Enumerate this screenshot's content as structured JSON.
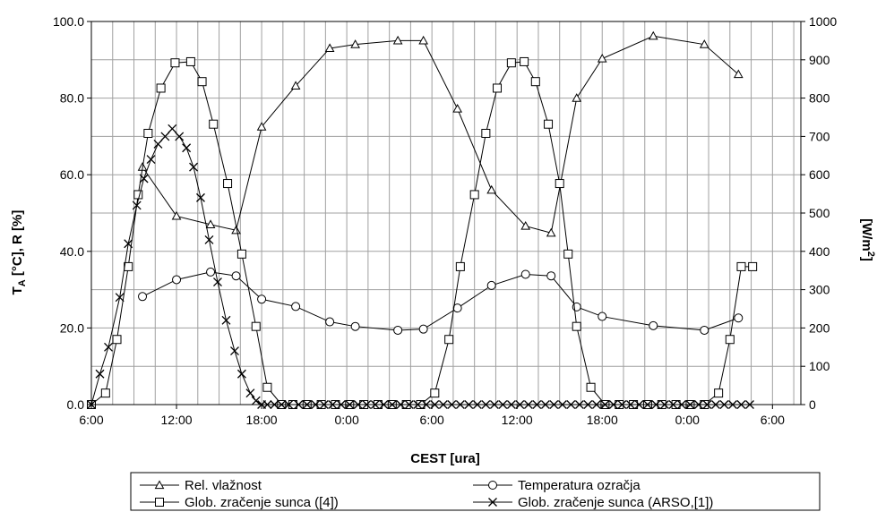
{
  "chart_data": {
    "type": "line",
    "title": "",
    "xlabel": "CEST [ura]",
    "ylabel_left_main": "T",
    "ylabel_left_sub": "A",
    "ylabel_left_rest": " [°C], R [%]",
    "ylabel_right_main": "[W/m",
    "ylabel_right_sup": "2",
    "ylabel_right_rest": "]",
    "xlim": [
      0,
      50
    ],
    "xticks": [
      0,
      6,
      12,
      18,
      24,
      30,
      36,
      42,
      48
    ],
    "xtick_labels": [
      "6:00",
      "12:00",
      "18:00",
      "0:00",
      "6:00",
      "12:00",
      "18:00",
      "0:00",
      "6:00"
    ],
    "ylim_left": [
      0,
      100
    ],
    "yticks_left": [
      0,
      20,
      40,
      60,
      80,
      100
    ],
    "ytick_labels_left": [
      "0.0",
      "20.0",
      "40.0",
      "60.0",
      "80.0",
      "100.0"
    ],
    "ylim_right": [
      0,
      1000
    ],
    "yticks_right": [
      0,
      100,
      200,
      300,
      400,
      500,
      600,
      700,
      800,
      900,
      1000
    ],
    "ytick_labels_right": [
      "0",
      "100",
      "200",
      "300",
      "400",
      "500",
      "600",
      "700",
      "800",
      "900",
      "1000"
    ],
    "grid": true,
    "legend_position": "bottom",
    "series": [
      {
        "name": "Rel. vlažnost",
        "axis": "left",
        "marker": "triangle",
        "x": [
          3.6,
          6.0,
          8.4,
          10.2,
          12.0,
          14.4,
          16.8,
          18.6,
          21.6,
          23.4,
          25.8,
          28.2,
          30.6,
          32.4,
          34.2,
          36.0
        ],
        "y": [
          62.0,
          49.2,
          47.0,
          45.5,
          72.5,
          83.2,
          93.0,
          94.0,
          95.0,
          95.0,
          77.2,
          56.0,
          46.6,
          44.8,
          80.0,
          90.3
        ],
        "x2": [
          39.6,
          43.2,
          45.6
        ],
        "y2": [
          96.2,
          94.0,
          86.2
        ]
      },
      {
        "name": "Temperatura ozračja",
        "axis": "left",
        "marker": "circle",
        "x": [
          3.6,
          6.0,
          8.4,
          10.2,
          12.0,
          14.4,
          16.8,
          18.6,
          21.6,
          23.4,
          25.8,
          28.2,
          30.6,
          32.4,
          34.2,
          36.0,
          39.6,
          43.2,
          45.6
        ],
        "y": [
          28.2,
          32.6,
          34.6,
          33.6,
          27.5,
          25.6,
          21.6,
          20.4,
          19.4,
          19.7,
          25.2,
          31.1,
          34.0,
          33.6,
          25.5,
          23.0,
          20.6,
          19.4,
          22.6
        ]
      },
      {
        "name": "Glob. zračenje sunca ([4])",
        "axis": "right",
        "marker": "square",
        "x": [
          0.0,
          1.0,
          1.8,
          2.6,
          3.3,
          4.0,
          4.9,
          5.9,
          7.0,
          7.8,
          8.6,
          9.6,
          10.6,
          11.6,
          12.4,
          13.4,
          14.2,
          15.2,
          16.2,
          17.2,
          18.2,
          19.2,
          20.2,
          21.2,
          22.2,
          23.2,
          24.2,
          25.2,
          26.0,
          27.0,
          27.8,
          28.6,
          29.6,
          30.5,
          31.3,
          32.2,
          33.0,
          33.6,
          34.2,
          35.2,
          36.2,
          37.2,
          38.2,
          39.2,
          40.2,
          41.2,
          42.2,
          43.2,
          44.2,
          45.0,
          45.8,
          46.6
        ],
        "y": [
          0,
          30,
          170,
          360,
          548,
          708,
          826,
          892,
          895,
          843,
          732,
          577,
          393,
          204,
          45,
          0,
          0,
          0,
          0,
          0,
          0,
          0,
          0,
          0,
          0,
          0,
          30,
          170,
          360,
          548,
          708,
          826,
          892,
          895,
          843,
          732,
          577,
          393,
          204,
          45,
          0,
          0,
          0,
          0,
          0,
          0,
          0,
          0,
          30,
          170,
          360,
          360
        ]
      },
      {
        "name": "Glob. zračenje sunca (ARSO,[1])",
        "axis": "right",
        "marker": "x",
        "x": [
          0.0,
          0.6,
          1.2,
          2.0,
          2.6,
          3.2,
          3.7,
          4.2,
          4.7,
          5.2,
          5.7,
          6.2,
          6.7,
          7.2,
          7.7,
          8.3,
          8.9,
          9.5,
          10.1,
          10.6,
          11.2,
          11.6,
          12.0,
          12.4,
          12.9,
          13.4,
          13.9,
          14.6,
          15.2,
          15.8,
          16.4,
          17.0,
          17.6,
          18.2,
          18.8,
          19.4,
          20.0,
          20.6,
          21.2,
          21.8,
          22.4,
          23.0,
          23.6,
          24.2,
          24.8,
          25.4,
          26.0,
          26.6,
          27.2,
          27.8,
          28.4,
          29.0,
          29.6,
          30.2,
          30.8,
          31.4,
          32.0,
          32.6,
          33.2,
          33.8,
          34.4,
          35.0,
          35.6,
          36.2,
          36.8,
          37.4,
          38.0,
          38.6,
          39.2,
          39.8,
          40.4,
          41.0,
          41.6,
          42.2,
          42.8,
          43.4,
          44.0,
          44.6,
          45.2,
          45.8,
          46.4
        ],
        "y": [
          0,
          80,
          150,
          280,
          420,
          520,
          590,
          640,
          680,
          700,
          720,
          700,
          670,
          620,
          540,
          430,
          320,
          220,
          140,
          80,
          30,
          10,
          0,
          0,
          0,
          0,
          0,
          0,
          0,
          0,
          0,
          0,
          0,
          0,
          0,
          0,
          0,
          0,
          0,
          0,
          0,
          0,
          0,
          0,
          0,
          0,
          0,
          0,
          0,
          0,
          0,
          0,
          0,
          0,
          0,
          0,
          0,
          0,
          0,
          0,
          0,
          0,
          0,
          0,
          0,
          0,
          0,
          0,
          0,
          0,
          0,
          0,
          0,
          0,
          0,
          0,
          0,
          0,
          0,
          0,
          0
        ]
      }
    ]
  }
}
